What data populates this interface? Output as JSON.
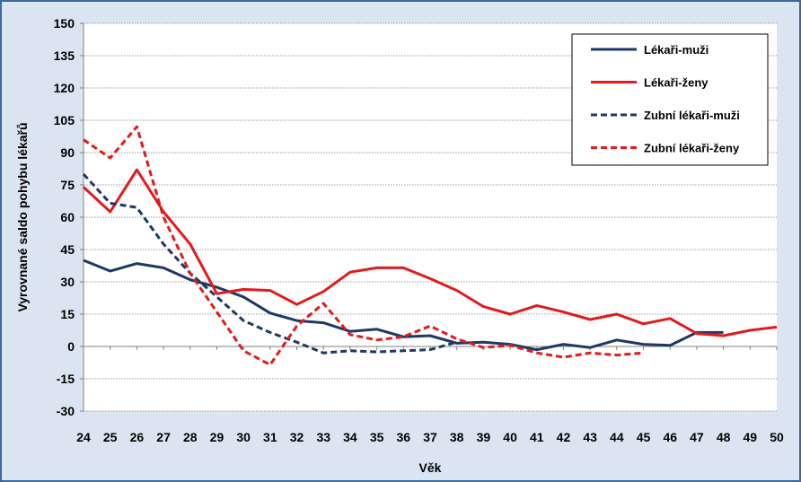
{
  "chart_data": {
    "type": "line",
    "xlabel": "Věk",
    "ylabel": "Vyrovnané saldo pohybu lékařů",
    "ylim": [
      -30,
      150
    ],
    "yticks": [
      -30,
      -15,
      0,
      15,
      30,
      45,
      60,
      75,
      90,
      105,
      120,
      135,
      150
    ],
    "x": [
      24,
      25,
      26,
      27,
      28,
      29,
      30,
      31,
      32,
      33,
      34,
      35,
      36,
      37,
      38,
      39,
      40,
      41,
      42,
      43,
      44,
      45,
      46,
      47,
      48,
      49,
      50
    ],
    "grid": "horizontal",
    "legend_position": "top-right",
    "series": [
      {
        "name": "Lékaři-muži",
        "color": "#1f3864",
        "dash": false,
        "values": [
          40,
          35,
          38.5,
          36.5,
          31,
          27.5,
          23,
          15.5,
          12,
          11,
          7,
          8,
          4.5,
          5,
          1.5,
          2,
          1,
          -1.5,
          1,
          -0.5,
          3,
          1,
          0.5,
          6.5,
          6.5,
          null,
          null
        ]
      },
      {
        "name": "Lékaři-ženy",
        "color": "#e31a1c",
        "dash": false,
        "values": [
          74,
          62.5,
          82,
          62.5,
          47.5,
          24.5,
          26.5,
          26,
          19.5,
          25.5,
          34.5,
          36.5,
          36.5,
          31.5,
          26,
          18.5,
          15,
          19,
          16,
          12.5,
          15,
          10.5,
          13,
          6,
          5,
          7.5,
          9
        ]
      },
      {
        "name": "Zubní lékaři-muži",
        "color": "#1f3864",
        "dash": true,
        "values": [
          80,
          66.5,
          64.5,
          47.5,
          34,
          23,
          12,
          6.5,
          2,
          -3,
          -2,
          -2.5,
          -2,
          -1.5,
          2,
          null,
          null,
          null,
          null,
          null,
          null,
          null,
          null,
          null,
          null,
          null,
          null
        ]
      },
      {
        "name": "Zubní lékaři-ženy",
        "color": "#e31a1c",
        "dash": true,
        "values": [
          96,
          87.5,
          102,
          60,
          34,
          16,
          -2,
          -8.5,
          9.5,
          20,
          5.5,
          3,
          4.5,
          9.5,
          3.5,
          -0.5,
          0.5,
          -3,
          -5,
          -3,
          -4,
          -3,
          null,
          null,
          null,
          null,
          null
        ]
      }
    ]
  }
}
